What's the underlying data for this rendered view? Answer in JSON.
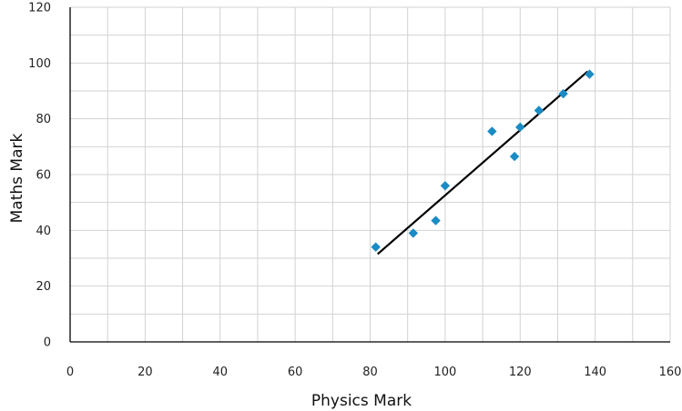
{
  "chart_data": {
    "type": "scatter",
    "xlabel": "Physics Mark",
    "ylabel": "Maths Mark",
    "xlim": [
      0,
      160
    ],
    "ylim": [
      0,
      120
    ],
    "xticks": [
      0,
      20,
      40,
      60,
      80,
      100,
      120,
      140,
      160
    ],
    "yticks": [
      0,
      20,
      40,
      60,
      80,
      100,
      120
    ],
    "grid": true,
    "grid_step_x": 10,
    "grid_step_y": 10,
    "legend": "none",
    "point_shape": "diamond",
    "point_color": "#1a8bc4",
    "line_color": "#000000",
    "points": [
      {
        "x": 81.5,
        "y": 34
      },
      {
        "x": 91.5,
        "y": 39
      },
      {
        "x": 97.5,
        "y": 43.5
      },
      {
        "x": 100,
        "y": 56
      },
      {
        "x": 112.5,
        "y": 75.5
      },
      {
        "x": 118.5,
        "y": 66.5
      },
      {
        "x": 120,
        "y": 77
      },
      {
        "x": 125,
        "y": 83
      },
      {
        "x": 131.5,
        "y": 89
      },
      {
        "x": 138.5,
        "y": 96
      }
    ],
    "trendline": {
      "x": [
        82,
        138
      ],
      "y": [
        31.5,
        97
      ]
    }
  }
}
